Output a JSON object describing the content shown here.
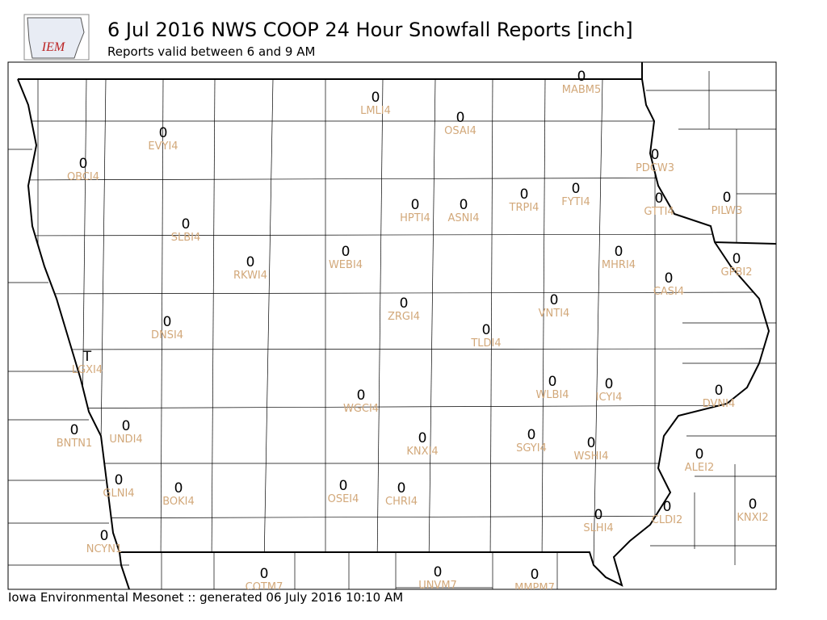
{
  "header": {
    "logo_text": "IEM",
    "title": "6 Jul 2016 NWS COOP 24 Hour Snowfall Reports [inch]",
    "subtitle": "Reports valid between 6 and 9 AM"
  },
  "stations": [
    {
      "id": "MABM5",
      "value": 0
    },
    {
      "id": "LMLI4",
      "value": 0
    },
    {
      "id": "OSAI4",
      "value": 0
    },
    {
      "id": "EVYI4",
      "value": 0
    },
    {
      "id": "PDCW3",
      "value": 0
    },
    {
      "id": "OBCI4",
      "value": 0
    },
    {
      "id": "FYTI4",
      "value": 0
    },
    {
      "id": "TRPI4",
      "value": 0
    },
    {
      "id": "HPTI4",
      "value": 0
    },
    {
      "id": "ASNI4",
      "value": 0
    },
    {
      "id": "GTTI4",
      "value": 0
    },
    {
      "id": "PILW3",
      "value": 0
    },
    {
      "id": "SLBI4",
      "value": 0
    },
    {
      "id": "MHRI4",
      "value": 0
    },
    {
      "id": "WEBI4",
      "value": 0
    },
    {
      "id": "RKWI4",
      "value": 0
    },
    {
      "id": "GPBI2",
      "value": 0
    },
    {
      "id": "CASI4",
      "value": 0
    },
    {
      "id": "ZRGI4",
      "value": 0
    },
    {
      "id": "VNTI4",
      "value": 0
    },
    {
      "id": "DNSI4",
      "value": 0
    },
    {
      "id": "TLDI4",
      "value": 0
    },
    {
      "id": "LGXI4",
      "value": "T"
    },
    {
      "id": "WLBI4",
      "value": 0
    },
    {
      "id": "ICYI4",
      "value": 0
    },
    {
      "id": "DVNI4",
      "value": 0
    },
    {
      "id": "WGCI4",
      "value": 0
    },
    {
      "id": "BNTN1",
      "value": 0
    },
    {
      "id": "UNDI4",
      "value": 0
    },
    {
      "id": "KNXI4",
      "value": 0
    },
    {
      "id": "SGYI4",
      "value": 0
    },
    {
      "id": "WSHI4",
      "value": 0
    },
    {
      "id": "ALEI2",
      "value": 0
    },
    {
      "id": "GLNI4",
      "value": 0
    },
    {
      "id": "BOKI4",
      "value": 0
    },
    {
      "id": "OSEI4",
      "value": 0
    },
    {
      "id": "CHRI4",
      "value": 0
    },
    {
      "id": "KNXI2",
      "value": 0
    },
    {
      "id": "SLHI4",
      "value": 0
    },
    {
      "id": "CLDI2",
      "value": 0
    },
    {
      "id": "NCYN1",
      "value": 0
    },
    {
      "id": "COTM7",
      "value": 0
    },
    {
      "id": "UNVM7",
      "value": 0
    },
    {
      "id": "MMPM7",
      "value": 0
    }
  ],
  "footer": "Iowa Environmental Mesonet :: generated 06 July 2016 10:10 AM"
}
